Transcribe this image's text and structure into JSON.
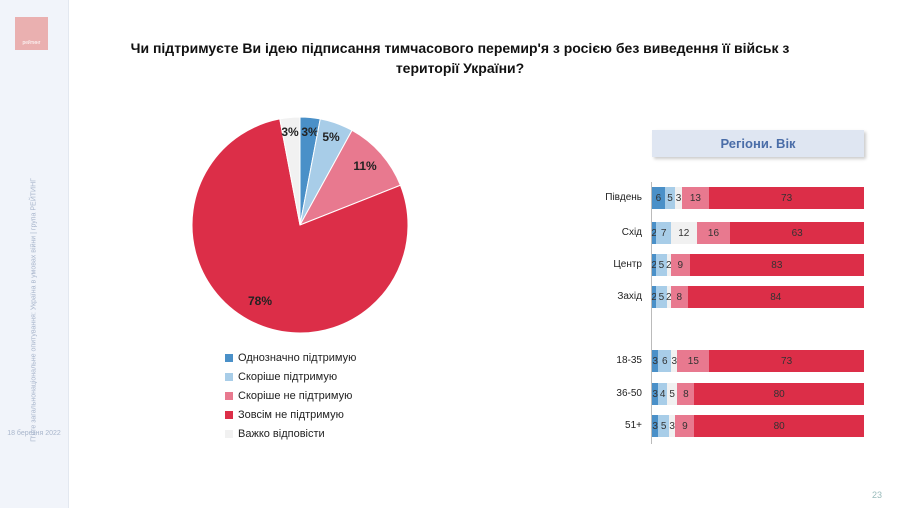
{
  "sidebar": {
    "logo": "рейтинг",
    "text": "П'яте загальнонаціональне опитування: Україна в умовах війни | група РЕЙТИНГ",
    "date": "18 березня 2022"
  },
  "page_number": "23",
  "chart_data": [
    {
      "type": "pie",
      "title": "Чи підтримуєте Ви ідею підписання тимчасового перемир'я з росією без виведення її військ з території України?",
      "slices": [
        {
          "name": "Однозначно підтримую",
          "value": 3,
          "label": "3%",
          "color": "#4a90c8"
        },
        {
          "name": "Скоріше підтримую",
          "value": 5,
          "label": "5%",
          "color": "#a8cde8"
        },
        {
          "name": "Скоріше не підтримую",
          "value": 11,
          "label": "11%",
          "color": "#e8798f"
        },
        {
          "name": "Зовсім не підтримую",
          "value": 78,
          "label": "78%",
          "color": "#dc2e48"
        },
        {
          "name": "Важко відповісти",
          "value": 3,
          "label": "3%",
          "color": "#f1f1f1"
        }
      ],
      "legend": "bottom"
    },
    {
      "type": "bar",
      "orientation": "horizontal",
      "stacked": true,
      "title": "Регіони. Вік",
      "categories": [
        "Південь",
        "Схід",
        "Центр",
        "Захід",
        "18-35",
        "36-50",
        "51+"
      ],
      "series": [
        {
          "name": "Однозначно підтримую",
          "values": [
            6,
            2,
            2,
            2,
            3,
            3,
            3
          ]
        },
        {
          "name": "Скоріше підтримую",
          "values": [
            5,
            7,
            5,
            5,
            6,
            4,
            5
          ]
        },
        {
          "name": "Важко відповісти",
          "values": [
            3,
            12,
            2,
            2,
            3,
            5,
            3
          ]
        },
        {
          "name": "Скоріше не підтримую",
          "values": [
            13,
            16,
            9,
            8,
            15,
            8,
            9
          ]
        },
        {
          "name": "Зовсім не підтримую",
          "values": [
            73,
            63,
            83,
            84,
            73,
            80,
            80
          ]
        }
      ]
    }
  ]
}
